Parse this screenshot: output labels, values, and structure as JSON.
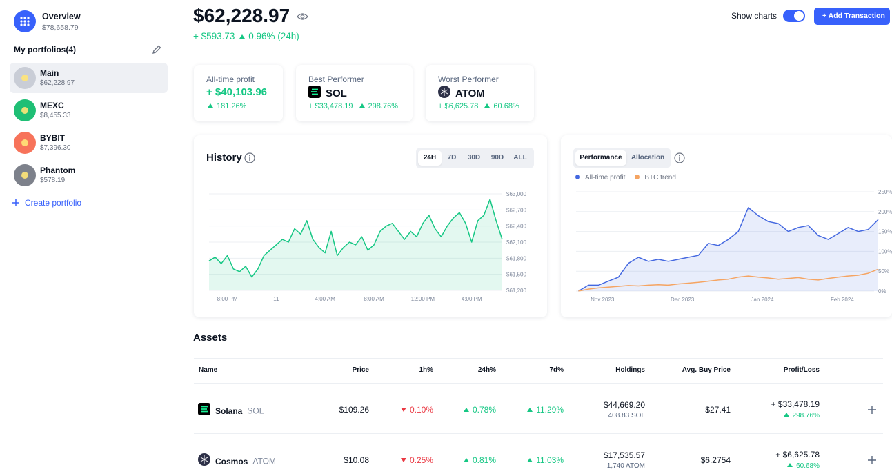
{
  "sidebar": {
    "overview": {
      "title": "Overview",
      "value": "$78,658.79"
    },
    "portfolios_title": "My portfolios(4)",
    "portfolios": [
      {
        "name": "Main",
        "value": "$62,228.97",
        "color": "#c9cdd6",
        "active": true
      },
      {
        "name": "MEXC",
        "value": "$8,455.33",
        "color": "#1fbf75",
        "active": false
      },
      {
        "name": "BYBIT",
        "value": "$7,396.30",
        "color": "#f7735a",
        "active": false
      },
      {
        "name": "Phantom",
        "value": "$578.19",
        "color": "#7d818b",
        "active": false
      }
    ],
    "create": "Create portfolio"
  },
  "header": {
    "balance": "$62,228.97",
    "change": "+ $593.73",
    "change_pct": "0.96% (24h)",
    "change_trend": "up",
    "show_charts": "Show charts",
    "add_transaction": "+ Add Transaction"
  },
  "stats": [
    {
      "label": "All-time profit",
      "value": "+ $40,103.96",
      "pct": "181.26%",
      "trend": "up"
    },
    {
      "label": "Best Performer",
      "symbol": "SOL",
      "value": "+ $33,478.19",
      "pct": "298.76%",
      "trend": "up"
    },
    {
      "label": "Worst Performer",
      "symbol": "ATOM",
      "value": "+ $6,625.78",
      "pct": "60.68%",
      "trend": "up"
    }
  ],
  "history_tabs": [
    "24H",
    "7D",
    "30D",
    "90D",
    "ALL"
  ],
  "history_active_tab": 0,
  "performance_tabs": [
    "Performance",
    "Allocation"
  ],
  "performance_active_tab": 0,
  "chart_data": [
    {
      "type": "line",
      "title": "History",
      "color": "#16c784",
      "area": true,
      "grid": true,
      "x": [
        -1.5,
        -1,
        -0.5,
        0,
        0.5,
        1,
        1.5,
        2,
        2.5,
        3,
        3.5,
        4,
        4.5,
        5,
        5.5,
        6,
        6.5,
        7,
        7.5,
        8,
        8.5,
        9,
        9.5,
        10,
        10.5,
        11,
        11.5,
        12,
        12.5,
        13,
        13.5,
        14,
        14.5,
        15,
        15.5,
        16,
        16.5,
        17,
        17.5,
        18,
        18.5,
        19,
        19.5,
        20,
        20.5,
        21,
        21.5,
        22,
        22.5
      ],
      "values": [
        61750,
        61820,
        61700,
        61850,
        61600,
        61550,
        61650,
        61450,
        61600,
        61850,
        61950,
        62050,
        62150,
        62100,
        62350,
        62250,
        62500,
        62150,
        62000,
        61900,
        62300,
        61850,
        62000,
        62100,
        62050,
        62200,
        61950,
        62050,
        62300,
        62400,
        62450,
        62300,
        62150,
        62300,
        62200,
        62450,
        62600,
        62350,
        62200,
        62400,
        62550,
        62650,
        62450,
        62100,
        62500,
        62600,
        62900,
        62500,
        62150
      ],
      "xlim": [
        -1.5,
        22.5
      ],
      "xticks": [
        {
          "value": 0,
          "label": "8:00 PM"
        },
        {
          "value": 4,
          "label": "11"
        },
        {
          "value": 8,
          "label": "4:00 AM"
        },
        {
          "value": 12,
          "label": "8:00 AM"
        },
        {
          "value": 16,
          "label": "12:00 PM"
        },
        {
          "value": 20,
          "label": "4:00 PM"
        }
      ],
      "ylim": [
        61200,
        63000
      ],
      "yticks": [
        {
          "value": 63000,
          "label": "$63,000"
        },
        {
          "value": 62700,
          "label": "$62,700"
        },
        {
          "value": 62400,
          "label": "$62,400"
        },
        {
          "value": 62100,
          "label": "$62,100"
        },
        {
          "value": 61800,
          "label": "$61,800"
        },
        {
          "value": 61500,
          "label": "$61,500"
        },
        {
          "value": 61200,
          "label": "$61,200"
        }
      ]
    },
    {
      "type": "line",
      "grid": true,
      "x": [
        -0.3,
        -0.175,
        -0.05,
        0.075,
        0.2,
        0.325,
        0.45,
        0.575,
        0.7,
        0.825,
        0.95,
        1.075,
        1.2,
        1.325,
        1.45,
        1.575,
        1.7,
        1.825,
        1.95,
        2.075,
        2.2,
        2.325,
        2.45,
        2.575,
        2.7,
        2.825,
        2.95,
        3.075,
        3.2,
        3.325,
        3.45
      ],
      "series": [
        {
          "name": "All-time profit",
          "color": "#4468e0",
          "area": true,
          "values": [
            0,
            15,
            15,
            25,
            35,
            70,
            85,
            75,
            80,
            75,
            80,
            85,
            90,
            120,
            115,
            130,
            150,
            210,
            190,
            175,
            170,
            150,
            160,
            165,
            140,
            130,
            145,
            160,
            150,
            155,
            180
          ]
        },
        {
          "name": "BTC trend",
          "color": "#f5a462",
          "area": false,
          "values": [
            0,
            5,
            8,
            10,
            12,
            14,
            13,
            15,
            16,
            15,
            18,
            20,
            22,
            25,
            28,
            30,
            35,
            38,
            35,
            33,
            30,
            32,
            34,
            30,
            28,
            32,
            35,
            38,
            40,
            45,
            55
          ]
        }
      ],
      "xlim": [
        -0.33,
        3.45
      ],
      "xticks": [
        {
          "value": 0,
          "label": "Nov 2023"
        },
        {
          "value": 1,
          "label": "Dec 2023"
        },
        {
          "value": 2,
          "label": "Jan 2024"
        },
        {
          "value": 3,
          "label": "Feb 2024"
        }
      ],
      "ylim": [
        0,
        250
      ],
      "yticks": [
        {
          "value": 250,
          "label": "250%"
        },
        {
          "value": 200,
          "label": "200%"
        },
        {
          "value": 150,
          "label": "150%"
        },
        {
          "value": 100,
          "label": "100%"
        },
        {
          "value": 50,
          "label": "50%"
        },
        {
          "value": 0,
          "label": "0%"
        }
      ]
    }
  ],
  "assets": {
    "title": "Assets",
    "columns": [
      "Name",
      "Price",
      "1h%",
      "24h%",
      "7d%",
      "Holdings",
      "Avg. Buy Price",
      "Profit/Loss"
    ],
    "rows": [
      {
        "name": "Solana",
        "symbol": "SOL",
        "price": "$109.26",
        "h1": {
          "text": "0.10%",
          "trend": "down"
        },
        "h24": {
          "text": "0.78%",
          "trend": "up"
        },
        "d7": {
          "text": "11.29%",
          "trend": "up"
        },
        "holdings": "$44,669.20",
        "amount": "408.83 SOL",
        "avg": "$27.41",
        "pnl": "+ $33,478.19",
        "pnl_pct": {
          "text": "298.76%",
          "trend": "up"
        }
      },
      {
        "name": "Cosmos",
        "symbol": "ATOM",
        "price": "$10.08",
        "h1": {
          "text": "0.25%",
          "trend": "down"
        },
        "h24": {
          "text": "0.81%",
          "trend": "up"
        },
        "d7": {
          "text": "11.03%",
          "trend": "up"
        },
        "holdings": "$17,535.57",
        "amount": "1,740 ATOM",
        "avg": "$6.2754",
        "pnl": "+ $6,625.78",
        "pnl_pct": {
          "text": "60.68%",
          "trend": "up"
        }
      }
    ]
  }
}
